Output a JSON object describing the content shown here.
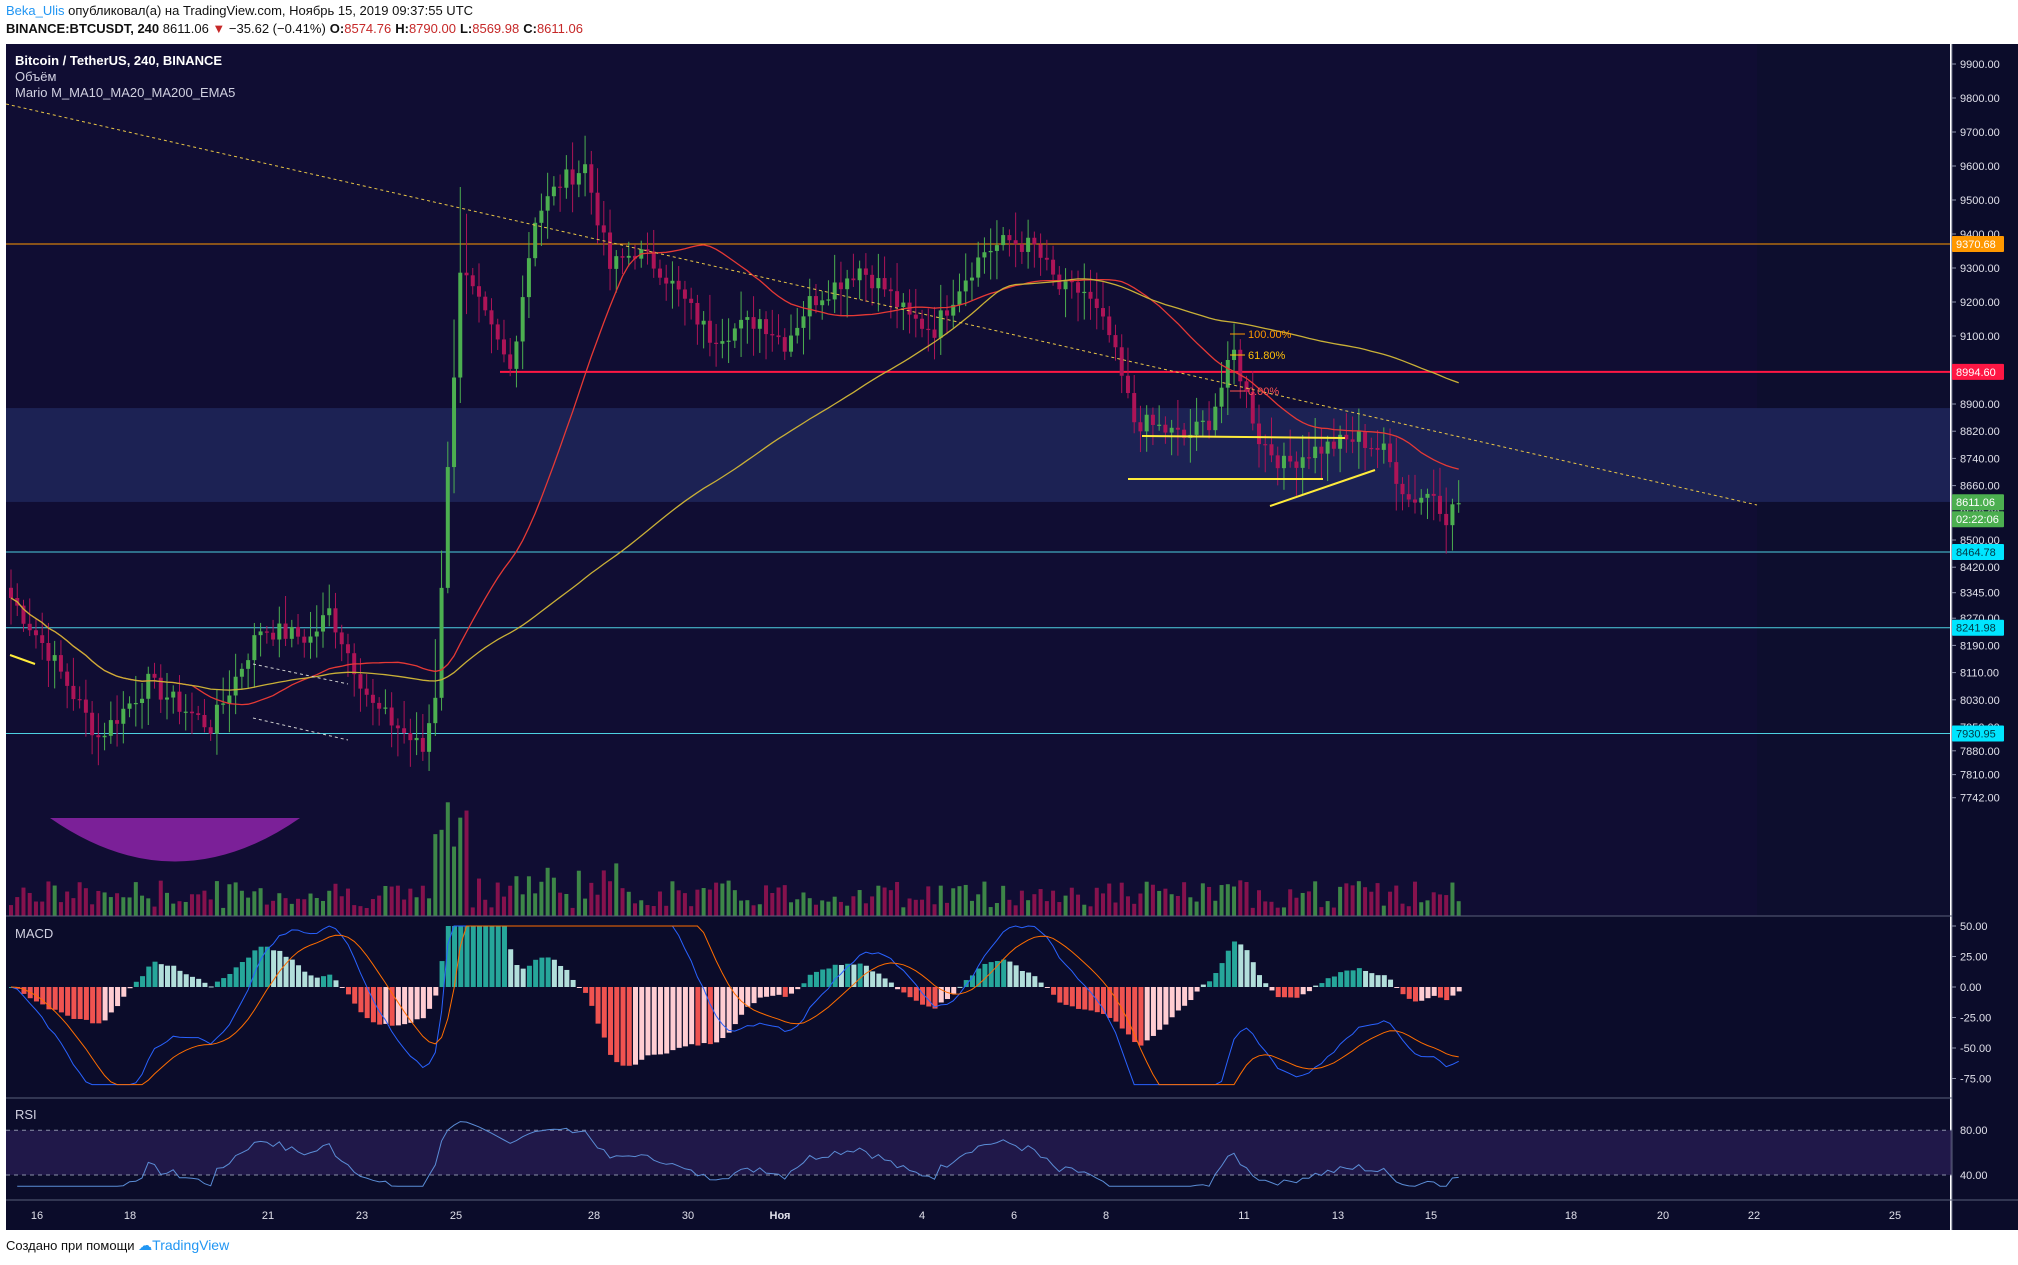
{
  "header": {
    "author": "Beka_Ulis",
    "published_text": "опубликовал(а) на TradingView.com, Ноябрь 15, 2019 09:37:55 UTC",
    "symbol_line": "BINANCE:BTCUSDT, 240",
    "last_price": "8611.06",
    "change": "−35.62 (−0.41%)",
    "open_label": "O:",
    "open": "8574.76",
    "high_label": "H:",
    "high": "8790.00",
    "low_label": "L:",
    "low": "8569.98",
    "close_label": "C:",
    "close": "8611.06"
  },
  "legend": {
    "title": "Bitcoin / TetherUS, 240, BINANCE",
    "volume": "Объём",
    "indicator": "Mario M_MA10_MA20_MA200_EMA5"
  },
  "panes": {
    "macd_label": "MACD",
    "rsi_label": "RSI"
  },
  "footer": {
    "created_with": "Создано при помощи",
    "brand": "TradingView"
  },
  "colors": {
    "background": "#0b0c2a",
    "up": "#4caf50",
    "down": "#ad1457",
    "ma_red": "#e53935",
    "ma_yellow": "#c9b037",
    "macd_pos": "#26a69a",
    "macd_pos_light": "#b2dfdb",
    "macd_neg": "#ef5350",
    "macd_neg_light": "#ffcdd2",
    "cyan_line": "#4dd0e1",
    "orange_line": "#ff9800",
    "red_line": "#ff1744"
  },
  "chart_data": {
    "type": "candlestick",
    "price_axis": [
      "9900.00",
      "9800.00",
      "9700.00",
      "9600.00",
      "9500.00",
      "9400.00",
      "9300.00",
      "9200.00",
      "9100.00",
      "9000.00",
      "8900.00",
      "8820.00",
      "8740.00",
      "8660.00",
      "8580.00",
      "8500.00",
      "8420.00",
      "8345.00",
      "8270.00",
      "8190.00",
      "8110.00",
      "8030.00",
      "7950.00",
      "7880.00",
      "7810.00",
      "7742.00"
    ],
    "price_labels": [
      {
        "value": "9370.68",
        "color": "#ff9800"
      },
      {
        "value": "8994.60",
        "color": "#ff1744"
      },
      {
        "value": "8611.06",
        "color": "#4caf50"
      },
      {
        "value": "02:22:06",
        "color": "#4caf50"
      },
      {
        "value": "8464.78",
        "color": "#00e5ff"
      },
      {
        "value": "8241.98",
        "color": "#00e5ff"
      },
      {
        "value": "7930.95",
        "color": "#00e5ff"
      }
    ],
    "horizontal_levels": [
      9370.68,
      8994.6,
      8464.78,
      8241.98,
      7930.95
    ],
    "zone": [
      8612,
      8888
    ],
    "fib_labels": [
      "100.00%",
      "61.80%",
      "0.00%"
    ],
    "x_ticks": [
      "16",
      "18",
      "21",
      "23",
      "25",
      "28",
      "30",
      "Ноя",
      "4",
      "6",
      "8",
      "11",
      "13",
      "15",
      "18",
      "20",
      "22",
      "25"
    ],
    "macd_axis": [
      "50.00",
      "25.00",
      "0.00",
      "-25.00",
      "-50.00",
      "-75.00"
    ],
    "rsi_axis": [
      "80.00",
      "40.00"
    ],
    "ohlc_anchors": [
      [
        0,
        8330
      ],
      [
        6,
        8170
      ],
      [
        14,
        7920
      ],
      [
        22,
        8080
      ],
      [
        28,
        8000
      ],
      [
        32,
        7950
      ],
      [
        40,
        8240
      ],
      [
        48,
        8210
      ],
      [
        51,
        8290
      ],
      [
        58,
        8010
      ],
      [
        62,
        7950
      ],
      [
        66,
        7880
      ],
      [
        68,
        8050
      ],
      [
        70,
        8700
      ],
      [
        72,
        9300
      ],
      [
        76,
        9150
      ],
      [
        80,
        9000
      ],
      [
        84,
        9450
      ],
      [
        88,
        9550
      ],
      [
        92,
        9600
      ],
      [
        96,
        9300
      ],
      [
        100,
        9350
      ],
      [
        104,
        9300
      ],
      [
        108,
        9200
      ],
      [
        112,
        9100
      ],
      [
        116,
        9120
      ],
      [
        120,
        9150
      ],
      [
        124,
        9080
      ],
      [
        128,
        9200
      ],
      [
        132,
        9250
      ],
      [
        136,
        9300
      ],
      [
        140,
        9240
      ],
      [
        144,
        9150
      ],
      [
        148,
        9120
      ],
      [
        152,
        9250
      ],
      [
        156,
        9350
      ],
      [
        160,
        9380
      ],
      [
        164,
        9360
      ],
      [
        168,
        9240
      ],
      [
        172,
        9230
      ],
      [
        176,
        9100
      ],
      [
        180,
        8850
      ],
      [
        184,
        8830
      ],
      [
        188,
        8800
      ],
      [
        192,
        8850
      ],
      [
        196,
        9050
      ],
      [
        200,
        8800
      ],
      [
        204,
        8720
      ],
      [
        208,
        8760
      ],
      [
        212,
        8780
      ],
      [
        216,
        8800
      ],
      [
        220,
        8760
      ],
      [
        224,
        8620
      ],
      [
        228,
        8640
      ],
      [
        230,
        8570
      ],
      [
        232,
        8611
      ]
    ]
  }
}
